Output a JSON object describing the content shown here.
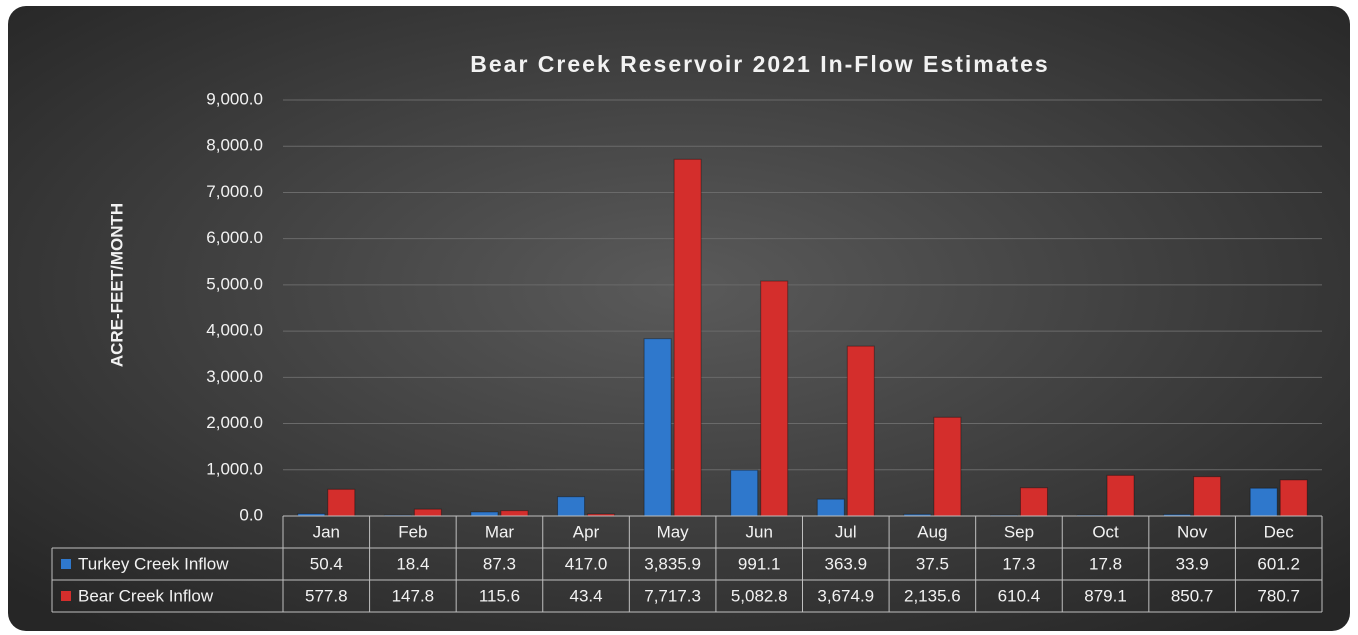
{
  "chart_data": {
    "type": "bar",
    "title": "Bear Creek Reservoir 2021 In-Flow Estimates",
    "ylabel": "ACRE-FEET/MONTH",
    "categories": [
      "Jan",
      "Feb",
      "Mar",
      "Apr",
      "May",
      "Jun",
      "Jul",
      "Aug",
      "Sep",
      "Oct",
      "Nov",
      "Dec"
    ],
    "series": [
      {
        "name": "Turkey Creek Inflow",
        "color": "#2f78cc",
        "values": [
          50.4,
          18.4,
          87.3,
          417.0,
          3835.9,
          991.1,
          363.9,
          37.5,
          17.3,
          17.8,
          33.9,
          601.2
        ],
        "value_labels": [
          "50.4",
          "18.4",
          "87.3",
          "417.0",
          "3,835.9",
          "991.1",
          "363.9",
          "37.5",
          "17.3",
          "17.8",
          "33.9",
          "601.2"
        ]
      },
      {
        "name": "Bear Creek Inflow",
        "color": "#d42e2c",
        "values": [
          577.8,
          147.8,
          115.6,
          43.4,
          7717.3,
          5082.8,
          3674.9,
          2135.6,
          610.4,
          879.1,
          850.7,
          780.7
        ],
        "value_labels": [
          "577.8",
          "147.8",
          "115.6",
          "43.4",
          "7,717.3",
          "5,082.8",
          "3,674.9",
          "2,135.6",
          "610.4",
          "879.1",
          "850.7",
          "780.7"
        ]
      }
    ],
    "ylim": [
      0,
      9000
    ],
    "yticks": [
      {
        "value": 0,
        "label": "0.0"
      },
      {
        "value": 1000,
        "label": "1,000.0"
      },
      {
        "value": 2000,
        "label": "2,000.0"
      },
      {
        "value": 3000,
        "label": "3,000.0"
      },
      {
        "value": 4000,
        "label": "4,000.0"
      },
      {
        "value": 5000,
        "label": "5,000.0"
      },
      {
        "value": 6000,
        "label": "6,000.0"
      },
      {
        "value": 7000,
        "label": "7,000.0"
      },
      {
        "value": 8000,
        "label": "8,000.0"
      },
      {
        "value": 9000,
        "label": "9,000.0"
      }
    ],
    "grid": true,
    "data_table": true
  }
}
